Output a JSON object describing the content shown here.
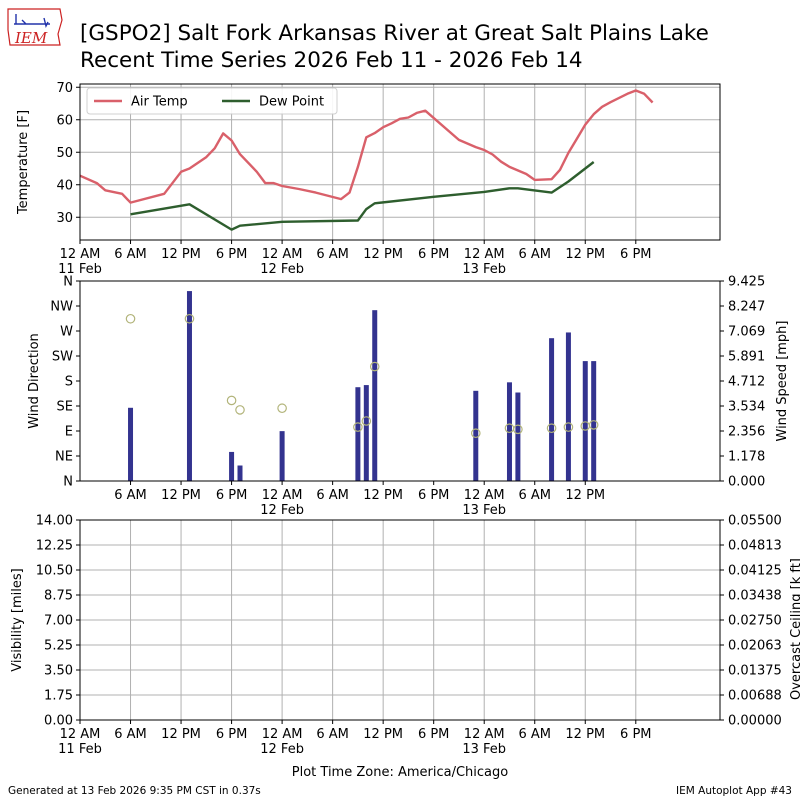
{
  "header": {
    "logo_text": "IEM",
    "title_line1": "[GSPO2] Salt Fork Arkansas River at Great Salt Plains Lake",
    "title_line2": "Recent Time Series 2026 Feb 11 - 2026 Feb 14"
  },
  "footer": {
    "generated": "Generated at 13 Feb 2026 9:35 PM CST in 0.37s",
    "app": "IEM Autoplot App #43",
    "timezone_label": "Plot Time Zone: America/Chicago"
  },
  "colors": {
    "air_temp": "#d9606a",
    "dew_point": "#2e5e2e",
    "wind_bar": "#33338f",
    "wind_dir_marker": "#b2b47a",
    "ceiling_label": "#008000",
    "grid": "#b0b0b0"
  },
  "chart_data": [
    {
      "type": "line",
      "id": "temperature",
      "ylabel": "Temperature [F]",
      "ylim": [
        23,
        71
      ],
      "yticks": [
        30,
        40,
        50,
        60,
        70
      ],
      "xlim_hours": [
        0,
        76
      ],
      "xticks": [
        {
          "h": 0,
          "label": "12 AM",
          "sub": "11 Feb"
        },
        {
          "h": 6,
          "label": "6 AM",
          "sub": ""
        },
        {
          "h": 12,
          "label": "12 PM",
          "sub": ""
        },
        {
          "h": 18,
          "label": "6 PM",
          "sub": ""
        },
        {
          "h": 24,
          "label": "12 AM",
          "sub": "12 Feb"
        },
        {
          "h": 30,
          "label": "6 AM",
          "sub": ""
        },
        {
          "h": 36,
          "label": "12 PM",
          "sub": ""
        },
        {
          "h": 42,
          "label": "6 PM",
          "sub": ""
        },
        {
          "h": 48,
          "label": "12 AM",
          "sub": "13 Feb"
        },
        {
          "h": 54,
          "label": "6 AM",
          "sub": ""
        },
        {
          "h": 60,
          "label": "12 PM",
          "sub": ""
        },
        {
          "h": 66,
          "label": "6 PM",
          "sub": ""
        }
      ],
      "grid": true,
      "legend": "top-left",
      "series": [
        {
          "name": "Air Temp",
          "x": [
            0,
            2,
            3,
            5,
            6,
            10,
            12,
            13,
            15,
            16,
            17,
            18,
            19,
            21,
            22,
            23,
            24,
            26,
            28,
            31,
            32,
            33,
            34,
            35,
            36,
            37,
            38,
            39,
            40,
            41,
            45,
            47,
            48,
            49,
            50,
            51,
            53,
            54,
            56,
            57,
            58,
            59,
            60,
            61,
            62,
            63,
            65,
            66,
            67,
            68
          ],
          "y": [
            42.8,
            40.5,
            38.3,
            37.2,
            34.5,
            37.2,
            44.0,
            45.0,
            48.5,
            51.2,
            55.8,
            53.6,
            49.4,
            44.0,
            40.5,
            40.5,
            39.6,
            38.7,
            37.6,
            35.6,
            37.6,
            45.5,
            54.6,
            55.9,
            57.7,
            58.9,
            60.3,
            60.7,
            62.1,
            62.8,
            53.8,
            51.6,
            50.7,
            49.3,
            47.1,
            45.5,
            43.3,
            41.5,
            41.7,
            44.6,
            49.8,
            54.1,
            58.5,
            61.7,
            64.0,
            65.4,
            68.0,
            69.0,
            68.0,
            65.3
          ]
        },
        {
          "name": "Dew Point",
          "x": [
            6,
            13,
            18,
            19,
            24,
            33,
            34,
            35,
            42,
            48,
            51,
            52,
            56,
            58,
            61
          ],
          "y": [
            30.9,
            34.0,
            26.2,
            27.4,
            28.6,
            29.0,
            32.5,
            34.3,
            36.3,
            37.8,
            38.9,
            38.9,
            37.6,
            41.0,
            47.0
          ]
        }
      ]
    },
    {
      "type": "bar",
      "id": "wind",
      "ylabel": "Wind Direction",
      "ylabel_right": "Wind Speed [mph]",
      "ylim_dir": [
        0,
        360
      ],
      "yticks_dir": [
        {
          "v": 0,
          "label": "N"
        },
        {
          "v": 45,
          "label": "NE"
        },
        {
          "v": 90,
          "label": "E"
        },
        {
          "v": 135,
          "label": "SE"
        },
        {
          "v": 180,
          "label": "S"
        },
        {
          "v": 225,
          "label": "SW"
        },
        {
          "v": 270,
          "label": "W"
        },
        {
          "v": 315,
          "label": "NW"
        },
        {
          "v": 360,
          "label": "N"
        }
      ],
      "ylim_speed": [
        0,
        9.425
      ],
      "yticks_speed": [
        "0.000",
        "1.178",
        "2.356",
        "3.534",
        "4.712",
        "5.891",
        "7.069",
        "8.247",
        "9.425"
      ],
      "xticks": [
        {
          "h": 6,
          "label": "6 AM",
          "sub": ""
        },
        {
          "h": 12,
          "label": "12 PM",
          "sub": ""
        },
        {
          "h": 18,
          "label": "6 PM",
          "sub": ""
        },
        {
          "h": 24,
          "label": "12 AM",
          "sub": "12 Feb"
        },
        {
          "h": 30,
          "label": "6 AM",
          "sub": ""
        },
        {
          "h": 36,
          "label": "12 PM",
          "sub": ""
        },
        {
          "h": 42,
          "label": "6 PM",
          "sub": ""
        },
        {
          "h": 48,
          "label": "12 AM",
          "sub": "13 Feb"
        },
        {
          "h": 54,
          "label": "6 AM",
          "sub": ""
        },
        {
          "h": 60,
          "label": "12 PM",
          "sub": ""
        }
      ],
      "grid": false,
      "speed_bars": {
        "x": [
          6,
          13,
          18,
          19,
          24,
          33,
          34,
          35,
          47,
          51,
          52,
          56,
          58,
          60,
          61
        ],
        "speed": [
          3.45,
          8.95,
          1.37,
          0.73,
          2.35,
          4.42,
          4.52,
          8.05,
          4.25,
          4.65,
          4.17,
          6.73,
          7.0,
          5.65,
          5.65
        ]
      },
      "direction_markers": {
        "x": [
          6,
          13,
          18,
          19,
          24,
          33,
          34,
          35,
          47,
          51,
          52,
          56,
          58,
          60,
          61
        ],
        "dir": [
          292,
          292,
          145,
          128,
          131,
          97,
          108,
          206,
          86,
          95,
          93,
          95,
          97,
          99,
          101
        ]
      }
    },
    {
      "type": "line",
      "id": "visibility",
      "ylabel": "Visibility [miles]",
      "ylabel_right": "Overcast Ceiling [k ft]",
      "ylim": [
        0,
        14
      ],
      "yticks": [
        "0.00",
        "1.75",
        "3.50",
        "5.25",
        "7.00",
        "8.75",
        "10.50",
        "12.25",
        "14.00"
      ],
      "yticks_right": [
        "0.00000",
        "0.00688",
        "0.01375",
        "0.02063",
        "0.02750",
        "0.03438",
        "0.04125",
        "0.04813",
        "0.05500"
      ],
      "grid": true,
      "xticks": [
        {
          "h": 0,
          "label": "12 AM",
          "sub": "11 Feb"
        },
        {
          "h": 6,
          "label": "6 AM",
          "sub": ""
        },
        {
          "h": 12,
          "label": "12 PM",
          "sub": ""
        },
        {
          "h": 18,
          "label": "6 PM",
          "sub": ""
        },
        {
          "h": 24,
          "label": "12 AM",
          "sub": "12 Feb"
        },
        {
          "h": 30,
          "label": "6 AM",
          "sub": ""
        },
        {
          "h": 36,
          "label": "12 PM",
          "sub": ""
        },
        {
          "h": 42,
          "label": "6 PM",
          "sub": ""
        },
        {
          "h": 48,
          "label": "12 AM",
          "sub": "13 Feb"
        },
        {
          "h": 54,
          "label": "6 AM",
          "sub": ""
        },
        {
          "h": 60,
          "label": "12 PM",
          "sub": ""
        },
        {
          "h": 66,
          "label": "6 PM",
          "sub": ""
        }
      ],
      "series": []
    }
  ]
}
